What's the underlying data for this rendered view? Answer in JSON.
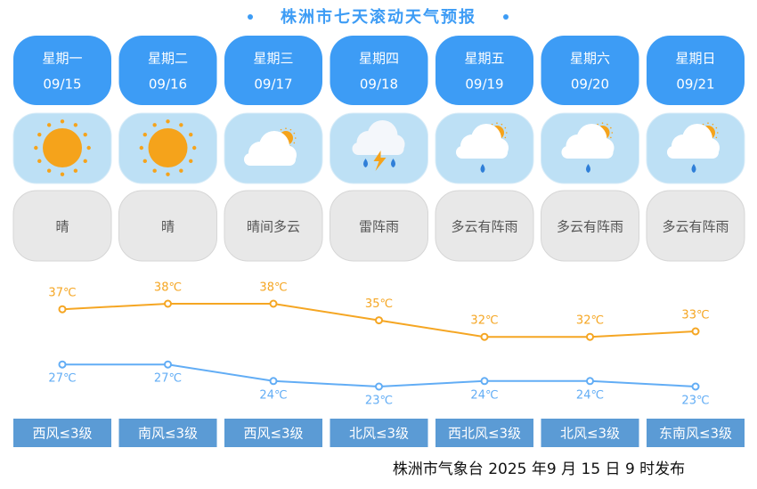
{
  "title": "株洲市七天滚动天气预报",
  "days": [
    {
      "weekday": "星期一",
      "date": "09/15",
      "weather": "晴",
      "wind": "西风≤3级"
    },
    {
      "weekday": "星期二",
      "date": "09/16",
      "weather": "晴",
      "wind": "南风≤3级"
    },
    {
      "weekday": "星期三",
      "date": "09/17",
      "weather": "晴间多云",
      "wind": "西风≤3级"
    },
    {
      "weekday": "星期四",
      "date": "09/18",
      "weather": "雷阵雨",
      "wind": "北风≤3级"
    },
    {
      "weekday": "星期五",
      "date": "09/19",
      "weather": "多云有阵雨",
      "wind": "西北风≤3级"
    },
    {
      "weekday": "星期六",
      "date": "09/20",
      "weather": "多云有阵雨",
      "wind": "北风≤3级"
    },
    {
      "weekday": "星期日",
      "date": "09/21",
      "weather": "多云有阵雨",
      "wind": "东南风≤3级"
    }
  ],
  "chart_data": {
    "type": "line",
    "series": [
      {
        "color": "#f5a623",
        "values": [
          37,
          38,
          38,
          35,
          32,
          32,
          33
        ],
        "value_labels": [
          "37℃",
          "38℃",
          "38℃",
          "35℃",
          "32℃",
          "32℃",
          "33℃"
        ]
      },
      {
        "color": "#62adf5",
        "values": [
          27,
          27,
          24,
          23,
          24,
          24,
          23
        ],
        "value_labels": [
          "27℃",
          "27℃",
          "24℃",
          "23℃",
          "24℃",
          "24℃",
          "23℃"
        ]
      }
    ]
  },
  "footer": "株洲市气象台 2025 年9 月 15 日 9 时发布"
}
